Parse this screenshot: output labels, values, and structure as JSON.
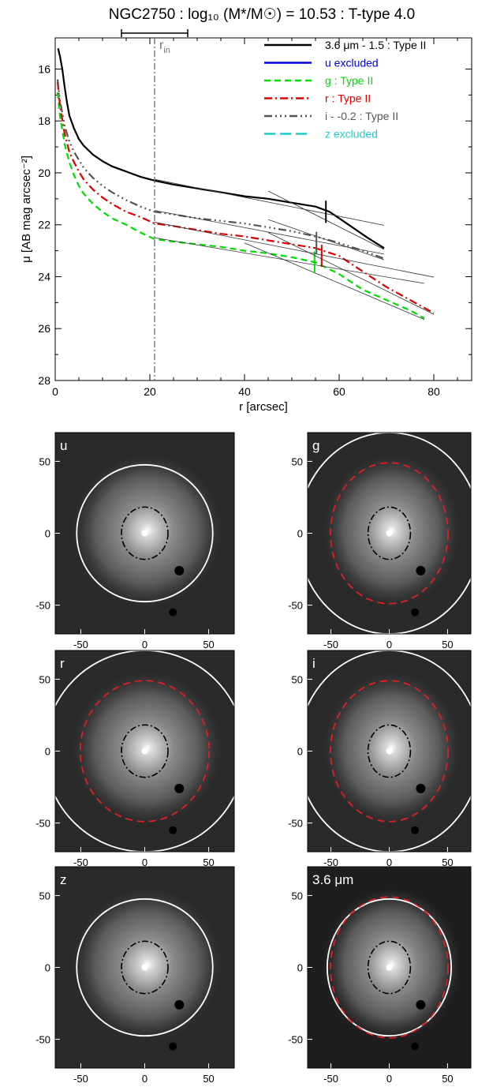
{
  "title": "NGC2750 : log₁₀ (M*/M☉) = 10.53 : T-type 4.0",
  "rin_label": "r",
  "rin_sub": "in",
  "chart_data": {
    "type": "line",
    "xlabel": "r [arcsec]",
    "ylabel": "μ [AB mag arcsec⁻²]",
    "xlim": [
      0,
      88
    ],
    "ylim": [
      28,
      14.8
    ],
    "y_inverted": true,
    "x_ticks": [
      "0",
      "20",
      "40",
      "60",
      "80"
    ],
    "y_ticks": [
      "16",
      "18",
      "20",
      "22",
      "24",
      "26",
      "28"
    ],
    "x_tick_values": [
      0,
      20,
      40,
      60,
      80
    ],
    "y_tick_values": [
      16,
      18,
      20,
      22,
      24,
      26,
      28
    ],
    "r_in": 21,
    "r_in_range": [
      14,
      28
    ],
    "legend_position": "top-right",
    "series": [
      {
        "name": "3.6 μm - 1.5 : Type II",
        "color": "#000000",
        "dash": "none",
        "x": [
          0.6,
          1,
          1.5,
          2,
          2.5,
          3,
          4,
          5,
          6,
          8,
          10,
          12,
          15,
          18,
          21,
          25,
          30,
          35,
          40,
          45,
          50,
          55,
          58,
          62,
          66,
          69.5
        ],
        "y": [
          15.2,
          15.5,
          16.0,
          16.7,
          17.3,
          17.8,
          18.3,
          18.7,
          18.95,
          19.3,
          19.55,
          19.75,
          19.95,
          20.15,
          20.3,
          20.45,
          20.6,
          20.75,
          20.9,
          21.0,
          21.15,
          21.3,
          21.5,
          22.0,
          22.5,
          22.9
        ],
        "break_x": 57.2
      },
      {
        "name": "u excluded",
        "color": "#0000dd",
        "dash": "none",
        "x": [],
        "y": []
      },
      {
        "name": "g : Type II",
        "color": "#00dd00",
        "dash": "8 5",
        "x": [
          0.5,
          1,
          2,
          3,
          4,
          5,
          6,
          8,
          10,
          12,
          15,
          18,
          21,
          25,
          30,
          35,
          40,
          45,
          50,
          55,
          60,
          65,
          70,
          75,
          78
        ],
        "y": [
          16.9,
          17.8,
          18.9,
          19.6,
          20.1,
          20.5,
          20.8,
          21.2,
          21.5,
          21.75,
          22.0,
          22.3,
          22.55,
          22.65,
          22.75,
          22.85,
          23.0,
          23.1,
          23.25,
          23.45,
          23.9,
          24.5,
          24.9,
          25.3,
          25.6
        ],
        "break_x": 54.8
      },
      {
        "name": "r : Type II",
        "color": "#dd0000",
        "dash": "10 4 2 4",
        "x": [
          0.5,
          1,
          2,
          3,
          4,
          5,
          6,
          8,
          10,
          12,
          15,
          18,
          21,
          25,
          30,
          35,
          40,
          45,
          50,
          55,
          60,
          65,
          70,
          75,
          80
        ],
        "y": [
          16.5,
          17.4,
          18.5,
          19.2,
          19.6,
          19.95,
          20.25,
          20.65,
          20.95,
          21.2,
          21.5,
          21.7,
          21.95,
          22.05,
          22.2,
          22.35,
          22.45,
          22.6,
          22.75,
          22.9,
          23.2,
          23.8,
          24.4,
          24.9,
          25.4
        ],
        "break_x": 56.3
      },
      {
        "name": "i - -0.2 : Type II",
        "color": "#555555",
        "dash": "10 4 2 4 2 4 2 4",
        "x": [
          0.5,
          1,
          2,
          3,
          4,
          5,
          6,
          8,
          10,
          12,
          15,
          18,
          21,
          25,
          30,
          35,
          40,
          45,
          50,
          55,
          60,
          65,
          69.5
        ],
        "y": [
          16.4,
          17.2,
          18.2,
          18.8,
          19.2,
          19.5,
          19.8,
          20.2,
          20.5,
          20.75,
          21.05,
          21.3,
          21.5,
          21.6,
          21.75,
          21.85,
          21.95,
          22.1,
          22.25,
          22.45,
          22.7,
          23.0,
          23.3
        ],
        "break_x": 55.2
      },
      {
        "name": "z excluded",
        "color": "#22cccc",
        "dash": "14 6",
        "x": [],
        "y": []
      }
    ]
  },
  "panels": [
    {
      "label": "u",
      "outer_ellipse": true,
      "red_ellipse": false,
      "bg": "#2a2a2a"
    },
    {
      "label": "g",
      "outer_ellipse": true,
      "red_ellipse": true,
      "bg": "#2a2a2a"
    },
    {
      "label": "r",
      "outer_ellipse": true,
      "red_ellipse": true,
      "bg": "#2a2a2a"
    },
    {
      "label": "i",
      "outer_ellipse": true,
      "red_ellipse": true,
      "bg": "#2a2a2a"
    },
    {
      "label": "z",
      "outer_ellipse": true,
      "red_ellipse": false,
      "bg": "#2a2a2a"
    },
    {
      "label": "3.6 μm",
      "outer_ellipse": true,
      "red_ellipse": true,
      "bg": "#1e1e1e"
    }
  ],
  "panel_x_ticks": [
    "-50",
    "0",
    "50"
  ],
  "panel_y_ticks": [
    "50",
    "0",
    "-50"
  ],
  "panel_tick_values": [
    -50,
    0,
    50
  ],
  "panel_extent": [
    -70,
    70
  ]
}
